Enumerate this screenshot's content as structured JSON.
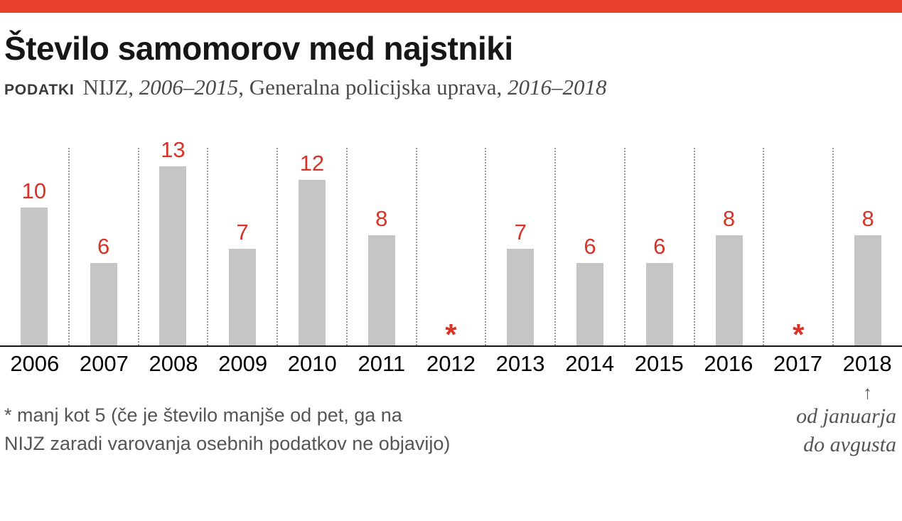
{
  "colors": {
    "accent": "#e8402c",
    "bar": "#c5c5c5",
    "value_label": "#d93226"
  },
  "header": {
    "title": "Število samomorov med najstniki",
    "source_label": "PODATKI",
    "source_org1": "NIJZ, ",
    "source_years1": "2006–2015",
    "source_org2": ", Generalna policijska uprava, ",
    "source_years2": "2016–2018"
  },
  "chart_data": {
    "type": "bar",
    "title": "Število samomorov med najstniki",
    "categories": [
      "2006",
      "2007",
      "2008",
      "2009",
      "2010",
      "2011",
      "2012",
      "2013",
      "2014",
      "2015",
      "2016",
      "2017",
      "2018"
    ],
    "values": [
      10,
      6,
      13,
      7,
      12,
      8,
      null,
      7,
      6,
      6,
      8,
      null,
      8
    ],
    "labels": [
      "10",
      "6",
      "13",
      "7",
      "12",
      "8",
      "*",
      "7",
      "6",
      "6",
      "8",
      "*",
      "8"
    ],
    "ylim": [
      0,
      13
    ],
    "xlabel": "",
    "ylabel": "",
    "grid": "vertical dotted separators between categories",
    "legend": "none"
  },
  "footnote": {
    "line1": "* manj kot 5 (če je število manjše od pet, ga na",
    "line2": "NIJZ zaradi varovanja osebnih podatkov ne objavijo)"
  },
  "annotation": {
    "arrow_icon": "↑",
    "line1": "od januarja",
    "line2": "do avgusta",
    "target": "2018"
  }
}
